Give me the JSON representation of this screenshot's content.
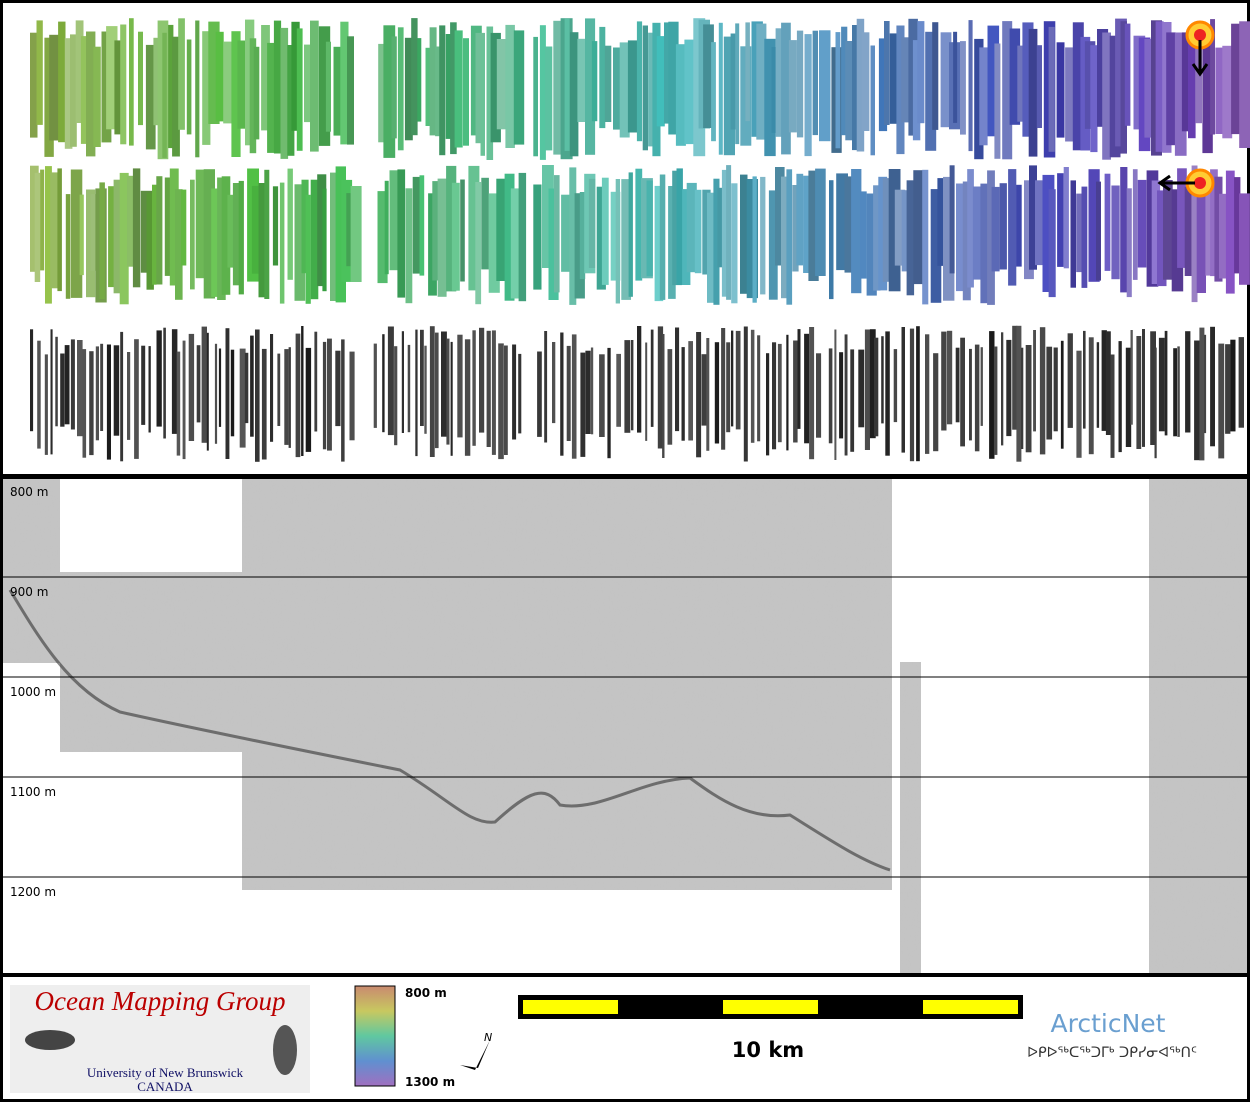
{
  "profile": {
    "depth_labels": [
      "800 m",
      "900 m",
      "1000 m",
      "1100 m",
      "1200 m"
    ]
  },
  "legend": {
    "logo_title": "Ocean Mapping Group",
    "logo_subtitle": "University of New Brunswick",
    "logo_country": "CANADA",
    "colorbar_top": "800 m",
    "colorbar_bottom": "1300 m",
    "north": "N",
    "scale_label": "10 km",
    "arcticnet": "ArcticNet",
    "arcticnet_inuktitut": "ᐅᑭᐅᖅᑕᖅᑐᒥᒃ ᑐᑭᓯᓂᐊᖅᑎᑦ"
  }
}
